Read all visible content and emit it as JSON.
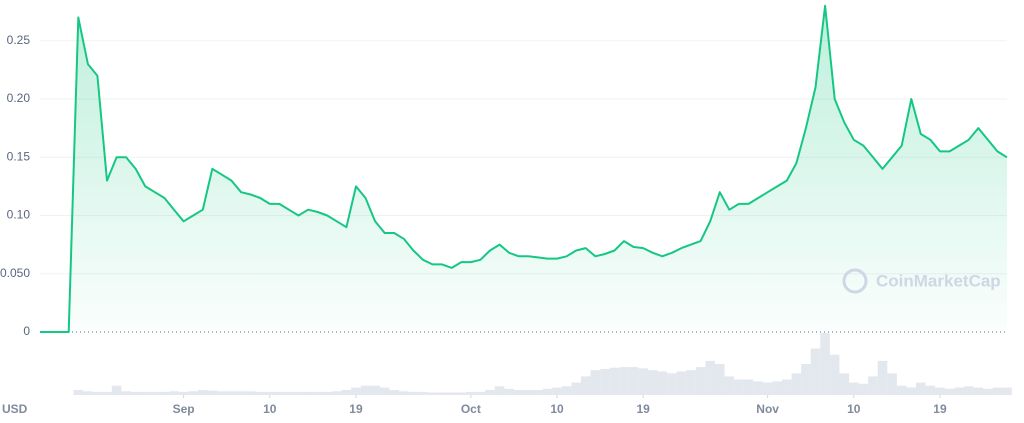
{
  "chart_data": {
    "type": "line",
    "x": [
      0,
      1,
      2,
      3,
      4,
      5,
      6,
      7,
      8,
      9,
      10,
      11,
      12,
      13,
      14,
      15,
      16,
      17,
      18,
      19,
      20,
      21,
      22,
      23,
      24,
      25,
      26,
      27,
      28,
      29,
      30,
      31,
      32,
      33,
      34,
      35,
      36,
      37,
      38,
      39,
      40,
      41,
      42,
      43,
      44,
      45,
      46,
      47,
      48,
      49,
      50,
      51,
      52,
      53,
      54,
      55,
      56,
      57,
      58,
      59,
      60,
      61,
      62,
      63,
      64,
      65,
      66,
      67,
      68,
      69,
      70,
      71,
      72,
      73,
      74,
      75,
      76,
      77,
      78,
      79,
      80,
      81,
      82,
      83,
      84,
      85,
      86,
      87,
      88,
      89,
      90,
      91,
      92,
      93,
      94,
      95,
      96,
      97,
      98,
      99,
      100,
      101
    ],
    "values": [
      0,
      0,
      0,
      0,
      0.27,
      0.23,
      0.22,
      0.13,
      0.15,
      0.15,
      0.14,
      0.125,
      0.12,
      0.115,
      0.105,
      0.095,
      0.1,
      0.105,
      0.14,
      0.135,
      0.13,
      0.12,
      0.118,
      0.115,
      0.11,
      0.11,
      0.105,
      0.1,
      0.105,
      0.103,
      0.1,
      0.095,
      0.09,
      0.125,
      0.115,
      0.095,
      0.085,
      0.085,
      0.08,
      0.07,
      0.062,
      0.058,
      0.058,
      0.055,
      0.06,
      0.06,
      0.062,
      0.07,
      0.075,
      0.068,
      0.065,
      0.065,
      0.064,
      0.063,
      0.063,
      0.065,
      0.07,
      0.072,
      0.065,
      0.067,
      0.07,
      0.078,
      0.073,
      0.072,
      0.068,
      0.065,
      0.068,
      0.072,
      0.075,
      0.078,
      0.095,
      0.12,
      0.105,
      0.11,
      0.11,
      0.115,
      0.12,
      0.125,
      0.13,
      0.145,
      0.175,
      0.21,
      0.28,
      0.2,
      0.18,
      0.165,
      0.16,
      0.15,
      0.14,
      0.15,
      0.16,
      0.2,
      0.17,
      0.165,
      0.155,
      0.155,
      0.16,
      0.165,
      0.175,
      0.165,
      0.155,
      0.15
    ],
    "color": "#16c784",
    "volume": [
      0,
      0,
      0,
      0,
      8,
      6,
      5,
      5,
      15,
      6,
      5,
      5,
      5,
      5,
      6,
      5,
      6,
      8,
      7,
      6,
      6,
      6,
      6,
      5,
      5,
      5,
      5,
      5,
      5,
      5,
      5,
      6,
      8,
      12,
      15,
      15,
      12,
      8,
      6,
      5,
      5,
      4,
      4,
      4,
      4,
      5,
      5,
      8,
      14,
      10,
      8,
      8,
      8,
      10,
      12,
      14,
      20,
      30,
      40,
      42,
      44,
      45,
      45,
      43,
      40,
      38,
      35,
      38,
      40,
      45,
      55,
      50,
      30,
      25,
      25,
      22,
      20,
      22,
      25,
      35,
      50,
      75,
      100,
      65,
      35,
      20,
      18,
      30,
      55,
      35,
      15,
      12,
      20,
      15,
      12,
      10,
      12,
      14,
      12,
      10,
      12,
      12
    ],
    "volume_color": "#e3e7ee",
    "volume_ylim": [
      0,
      100
    ],
    "xlim": [
      0,
      101
    ],
    "xticks": [
      {
        "value": 15,
        "label": "Sep"
      },
      {
        "value": 24,
        "label": "10"
      },
      {
        "value": 33,
        "label": "19"
      },
      {
        "value": 45,
        "label": "Oct"
      },
      {
        "value": 54,
        "label": "10"
      },
      {
        "value": 63,
        "label": "19"
      },
      {
        "value": 76,
        "label": "Nov"
      },
      {
        "value": 85,
        "label": "10"
      },
      {
        "value": 94,
        "label": "19"
      }
    ],
    "ylim": [
      0,
      0.285
    ],
    "yticks": [
      0,
      {
        "value": 0.05,
        "label": "0.050"
      },
      {
        "value": 0.1,
        "label": "0.10"
      },
      0.15,
      {
        "value": 0.2,
        "label": "0.20"
      },
      0.25
    ],
    "grid": true,
    "currency": "USD",
    "watermark": "CoinMarketCap"
  }
}
